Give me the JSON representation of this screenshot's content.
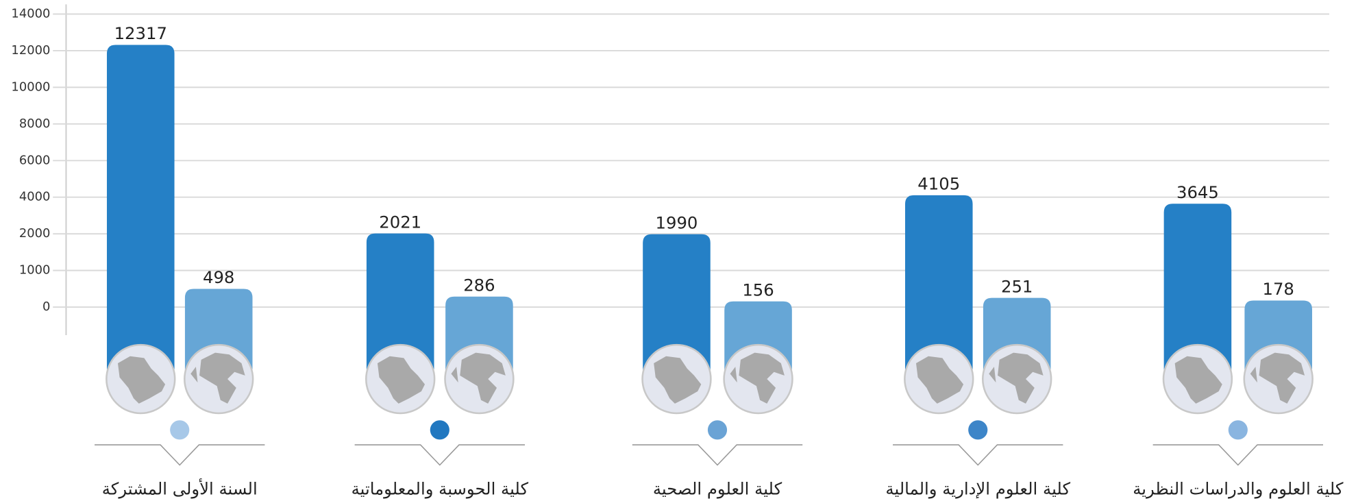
{
  "chart_data": {
    "type": "bar",
    "categories": [
      "السنة الأولى المشتركة",
      "كلية الحوسبة والمعلوماتية",
      "كلية العلوم الصحية",
      "كلية العلوم الإدارية والمالية",
      "كلية العلوم والدراسات النظرية"
    ],
    "series": [
      {
        "color": "#2580c6",
        "values": [
          12317,
          2021,
          1990,
          4105,
          3645
        ]
      },
      {
        "color": "#66a6d6",
        "values": [
          498,
          286,
          156,
          251,
          178
        ]
      }
    ],
    "ylim": [
      0,
      14000
    ],
    "yticks": [
      0,
      1000,
      2000,
      4000,
      6000,
      8000,
      10000,
      12000,
      14000
    ],
    "grid": true
  }
}
